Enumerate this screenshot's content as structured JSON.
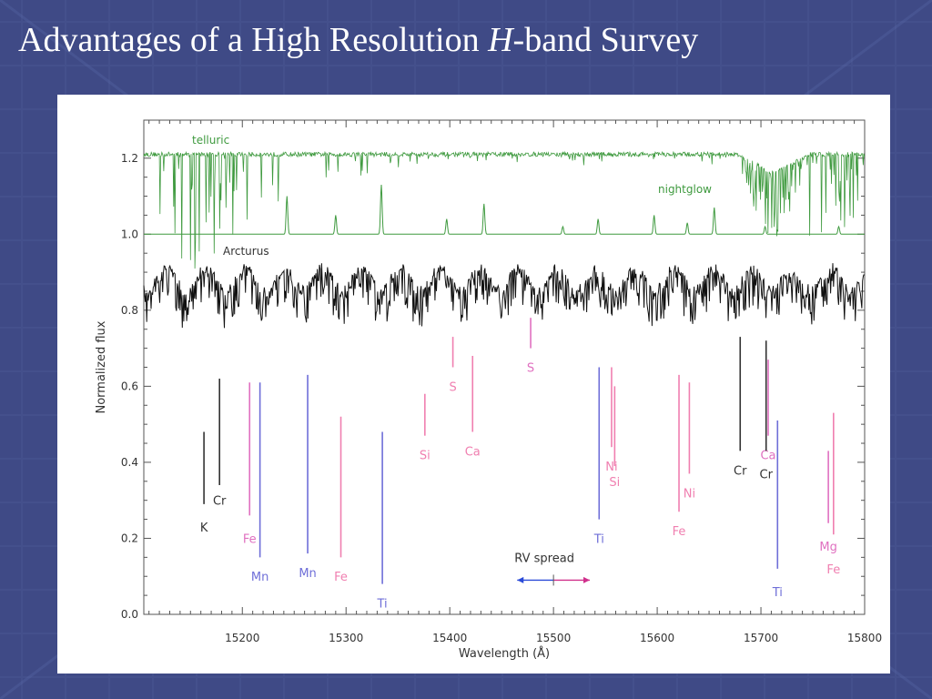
{
  "slide": {
    "title_main": "Advantages of a High Resolution ",
    "title_italic": "H",
    "title_tail": "-band Survey"
  },
  "colors": {
    "background": "#3f4a86",
    "telluric": "#3f9a3f",
    "nightglow": "#3f9a3f",
    "arcturus": "#111111",
    "black_line": "#333333",
    "magenta_line": "#e070c0",
    "blue_line": "#6f6fd8",
    "pink_line": "#f07fb0"
  },
  "chart_data": {
    "type": "line",
    "xlabel": "Wavelength (Å)",
    "ylabel": "Normalized flux",
    "xlim": [
      15105,
      15800
    ],
    "ylim": [
      0.0,
      1.3
    ],
    "x_ticks": [
      15200,
      15300,
      15400,
      15500,
      15600,
      15700,
      15800
    ],
    "y_ticks": [
      0.0,
      0.2,
      0.4,
      0.6,
      0.8,
      1.0,
      1.2
    ],
    "y_tick_labels": [
      "0.0",
      "0.2",
      "0.4",
      "0.6",
      "0.8",
      "1.0",
      "1.2"
    ],
    "series": [
      {
        "name": "telluric",
        "baseline": 1.21,
        "color": "#3f9a3f"
      },
      {
        "name": "nightglow",
        "baseline": 1.0,
        "color": "#3f9a3f"
      },
      {
        "name": "Arcturus",
        "baseline": 0.88,
        "color": "#111111"
      }
    ],
    "nightglow_peaks": [
      {
        "x": 15243,
        "h": 0.1
      },
      {
        "x": 15290,
        "h": 0.05
      },
      {
        "x": 15334,
        "h": 0.13
      },
      {
        "x": 15397,
        "h": 0.04
      },
      {
        "x": 15433,
        "h": 0.08
      },
      {
        "x": 15509,
        "h": 0.02
      },
      {
        "x": 15543,
        "h": 0.04
      },
      {
        "x": 15597,
        "h": 0.05
      },
      {
        "x": 15629,
        "h": 0.03
      },
      {
        "x": 15655,
        "h": 0.07
      },
      {
        "x": 15704,
        "h": 0.02
      },
      {
        "x": 15775,
        "h": 0.02
      }
    ],
    "line_identifications": [
      {
        "label": "K",
        "x": 15163,
        "top": 0.48,
        "bottom": 0.29,
        "label_y": 0.23,
        "color": "#333333"
      },
      {
        "label": "Cr",
        "x": 15178,
        "top": 0.62,
        "bottom": 0.34,
        "label_y": 0.3,
        "color": "#333333"
      },
      {
        "label": "Fe",
        "x": 15207,
        "top": 0.61,
        "bottom": 0.26,
        "label_y": 0.2,
        "color": "#e070c0"
      },
      {
        "label": "Mn",
        "x": 15217,
        "top": 0.61,
        "bottom": 0.15,
        "label_y": 0.1,
        "color": "#6f6fd8"
      },
      {
        "label": "Mn",
        "x": 15263,
        "top": 0.63,
        "bottom": 0.16,
        "label_y": 0.11,
        "color": "#6f6fd8"
      },
      {
        "label": "Fe",
        "x": 15295,
        "top": 0.52,
        "bottom": 0.15,
        "label_y": 0.1,
        "color": "#f07fb0"
      },
      {
        "label": "Ti",
        "x": 15335,
        "top": 0.48,
        "bottom": 0.08,
        "label_y": 0.03,
        "color": "#6f6fd8"
      },
      {
        "label": "Si",
        "x": 15376,
        "top": 0.58,
        "bottom": 0.47,
        "label_y": 0.42,
        "color": "#f07fb0"
      },
      {
        "label": "S",
        "x": 15403,
        "top": 0.73,
        "bottom": 0.65,
        "label_y": 0.6,
        "color": "#f07fb0"
      },
      {
        "label": "Ca",
        "x": 15422,
        "top": 0.68,
        "bottom": 0.48,
        "label_y": 0.43,
        "color": "#f07fb0"
      },
      {
        "label": "S",
        "x": 15478,
        "top": 0.78,
        "bottom": 0.7,
        "label_y": 0.65,
        "color": "#e070c0"
      },
      {
        "label": "Ti",
        "x": 15544,
        "top": 0.65,
        "bottom": 0.25,
        "label_y": 0.2,
        "color": "#6f6fd8"
      },
      {
        "label": "Ni",
        "x": 15556,
        "top": 0.65,
        "bottom": 0.44,
        "label_y": 0.39,
        "color": "#f07fb0"
      },
      {
        "label": "Si",
        "x": 15559,
        "top": 0.6,
        "bottom": 0.39,
        "label_y": 0.35,
        "color": "#f07fb0"
      },
      {
        "label": "Fe",
        "x": 15621,
        "top": 0.63,
        "bottom": 0.27,
        "label_y": 0.22,
        "color": "#f07fb0"
      },
      {
        "label": "Ni",
        "x": 15631,
        "top": 0.61,
        "bottom": 0.37,
        "label_y": 0.32,
        "color": "#f07fb0"
      },
      {
        "label": "Cr",
        "x": 15680,
        "top": 0.73,
        "bottom": 0.43,
        "label_y": 0.38,
        "color": "#333333"
      },
      {
        "label": "Ca",
        "x": 15707,
        "top": 0.67,
        "bottom": 0.47,
        "label_y": 0.42,
        "color": "#e070c0"
      },
      {
        "label": "Cr",
        "x": 15705,
        "top": 0.72,
        "bottom": 0.43,
        "label_y": 0.37,
        "color": "#333333"
      },
      {
        "label": "Ti",
        "x": 15716,
        "top": 0.51,
        "bottom": 0.12,
        "label_y": 0.06,
        "color": "#6f6fd8"
      },
      {
        "label": "Mg",
        "x": 15765,
        "top": 0.43,
        "bottom": 0.24,
        "label_y": 0.18,
        "color": "#e070c0"
      },
      {
        "label": "Fe",
        "x": 15770,
        "top": 0.53,
        "bottom": 0.21,
        "label_y": 0.12,
        "color": "#f07fb0"
      }
    ],
    "rv_spread": {
      "label": "RV spread",
      "x_start": 15465,
      "x_end": 15535,
      "center": 15500,
      "y": 0.09
    }
  }
}
